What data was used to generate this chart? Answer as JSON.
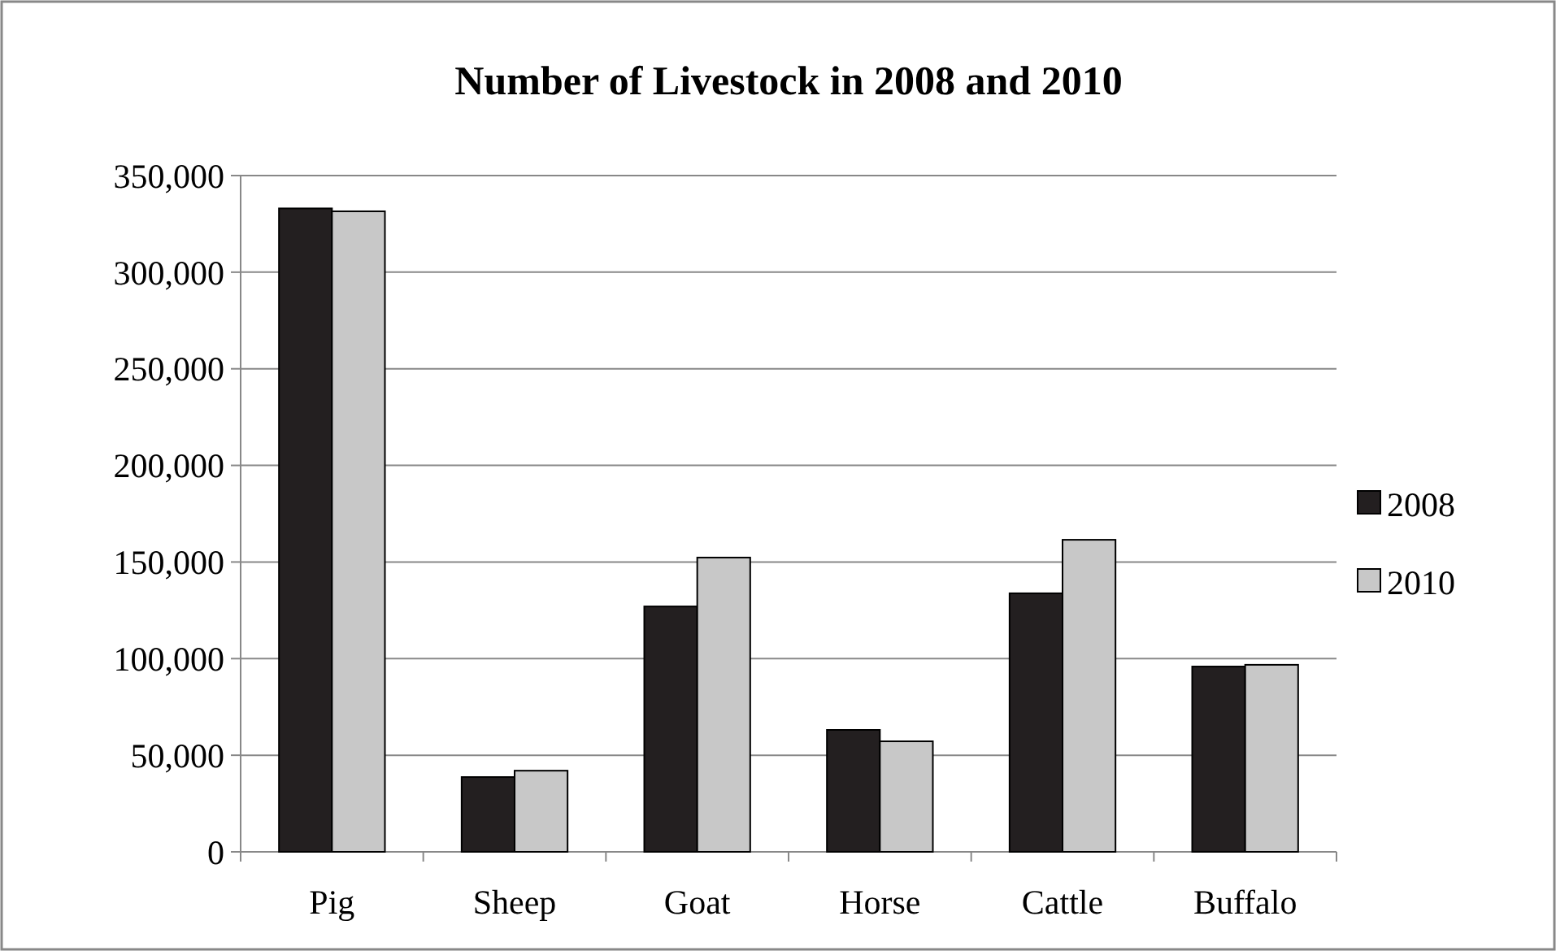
{
  "chart_data": {
    "type": "bar",
    "title": "Number of Livestock in 2008 and 2010",
    "categories": [
      "Pig",
      "Sheep",
      "Goat",
      "Horse",
      "Cattle",
      "Buffalo"
    ],
    "series": [
      {
        "name": "2008",
        "color": "#231f20",
        "values": [
          333000,
          38700,
          127000,
          63100,
          133800,
          95900
        ]
      },
      {
        "name": "2010",
        "color": "#c8c8c8",
        "values": [
          331500,
          42000,
          152300,
          57200,
          161500,
          96800
        ]
      }
    ],
    "ylim": [
      0,
      350000
    ],
    "yticks": [
      {
        "value": 0,
        "label": "0"
      },
      {
        "value": 50000,
        "label": "50,000"
      },
      {
        "value": 100000,
        "label": "100,000"
      },
      {
        "value": 150000,
        "label": "150,000"
      },
      {
        "value": 200000,
        "label": "200,000"
      },
      {
        "value": 250000,
        "label": "250,000"
      },
      {
        "value": 300000,
        "label": "300,000"
      },
      {
        "value": 350000,
        "label": "350,000"
      }
    ],
    "grid": "y",
    "legend": "right"
  }
}
